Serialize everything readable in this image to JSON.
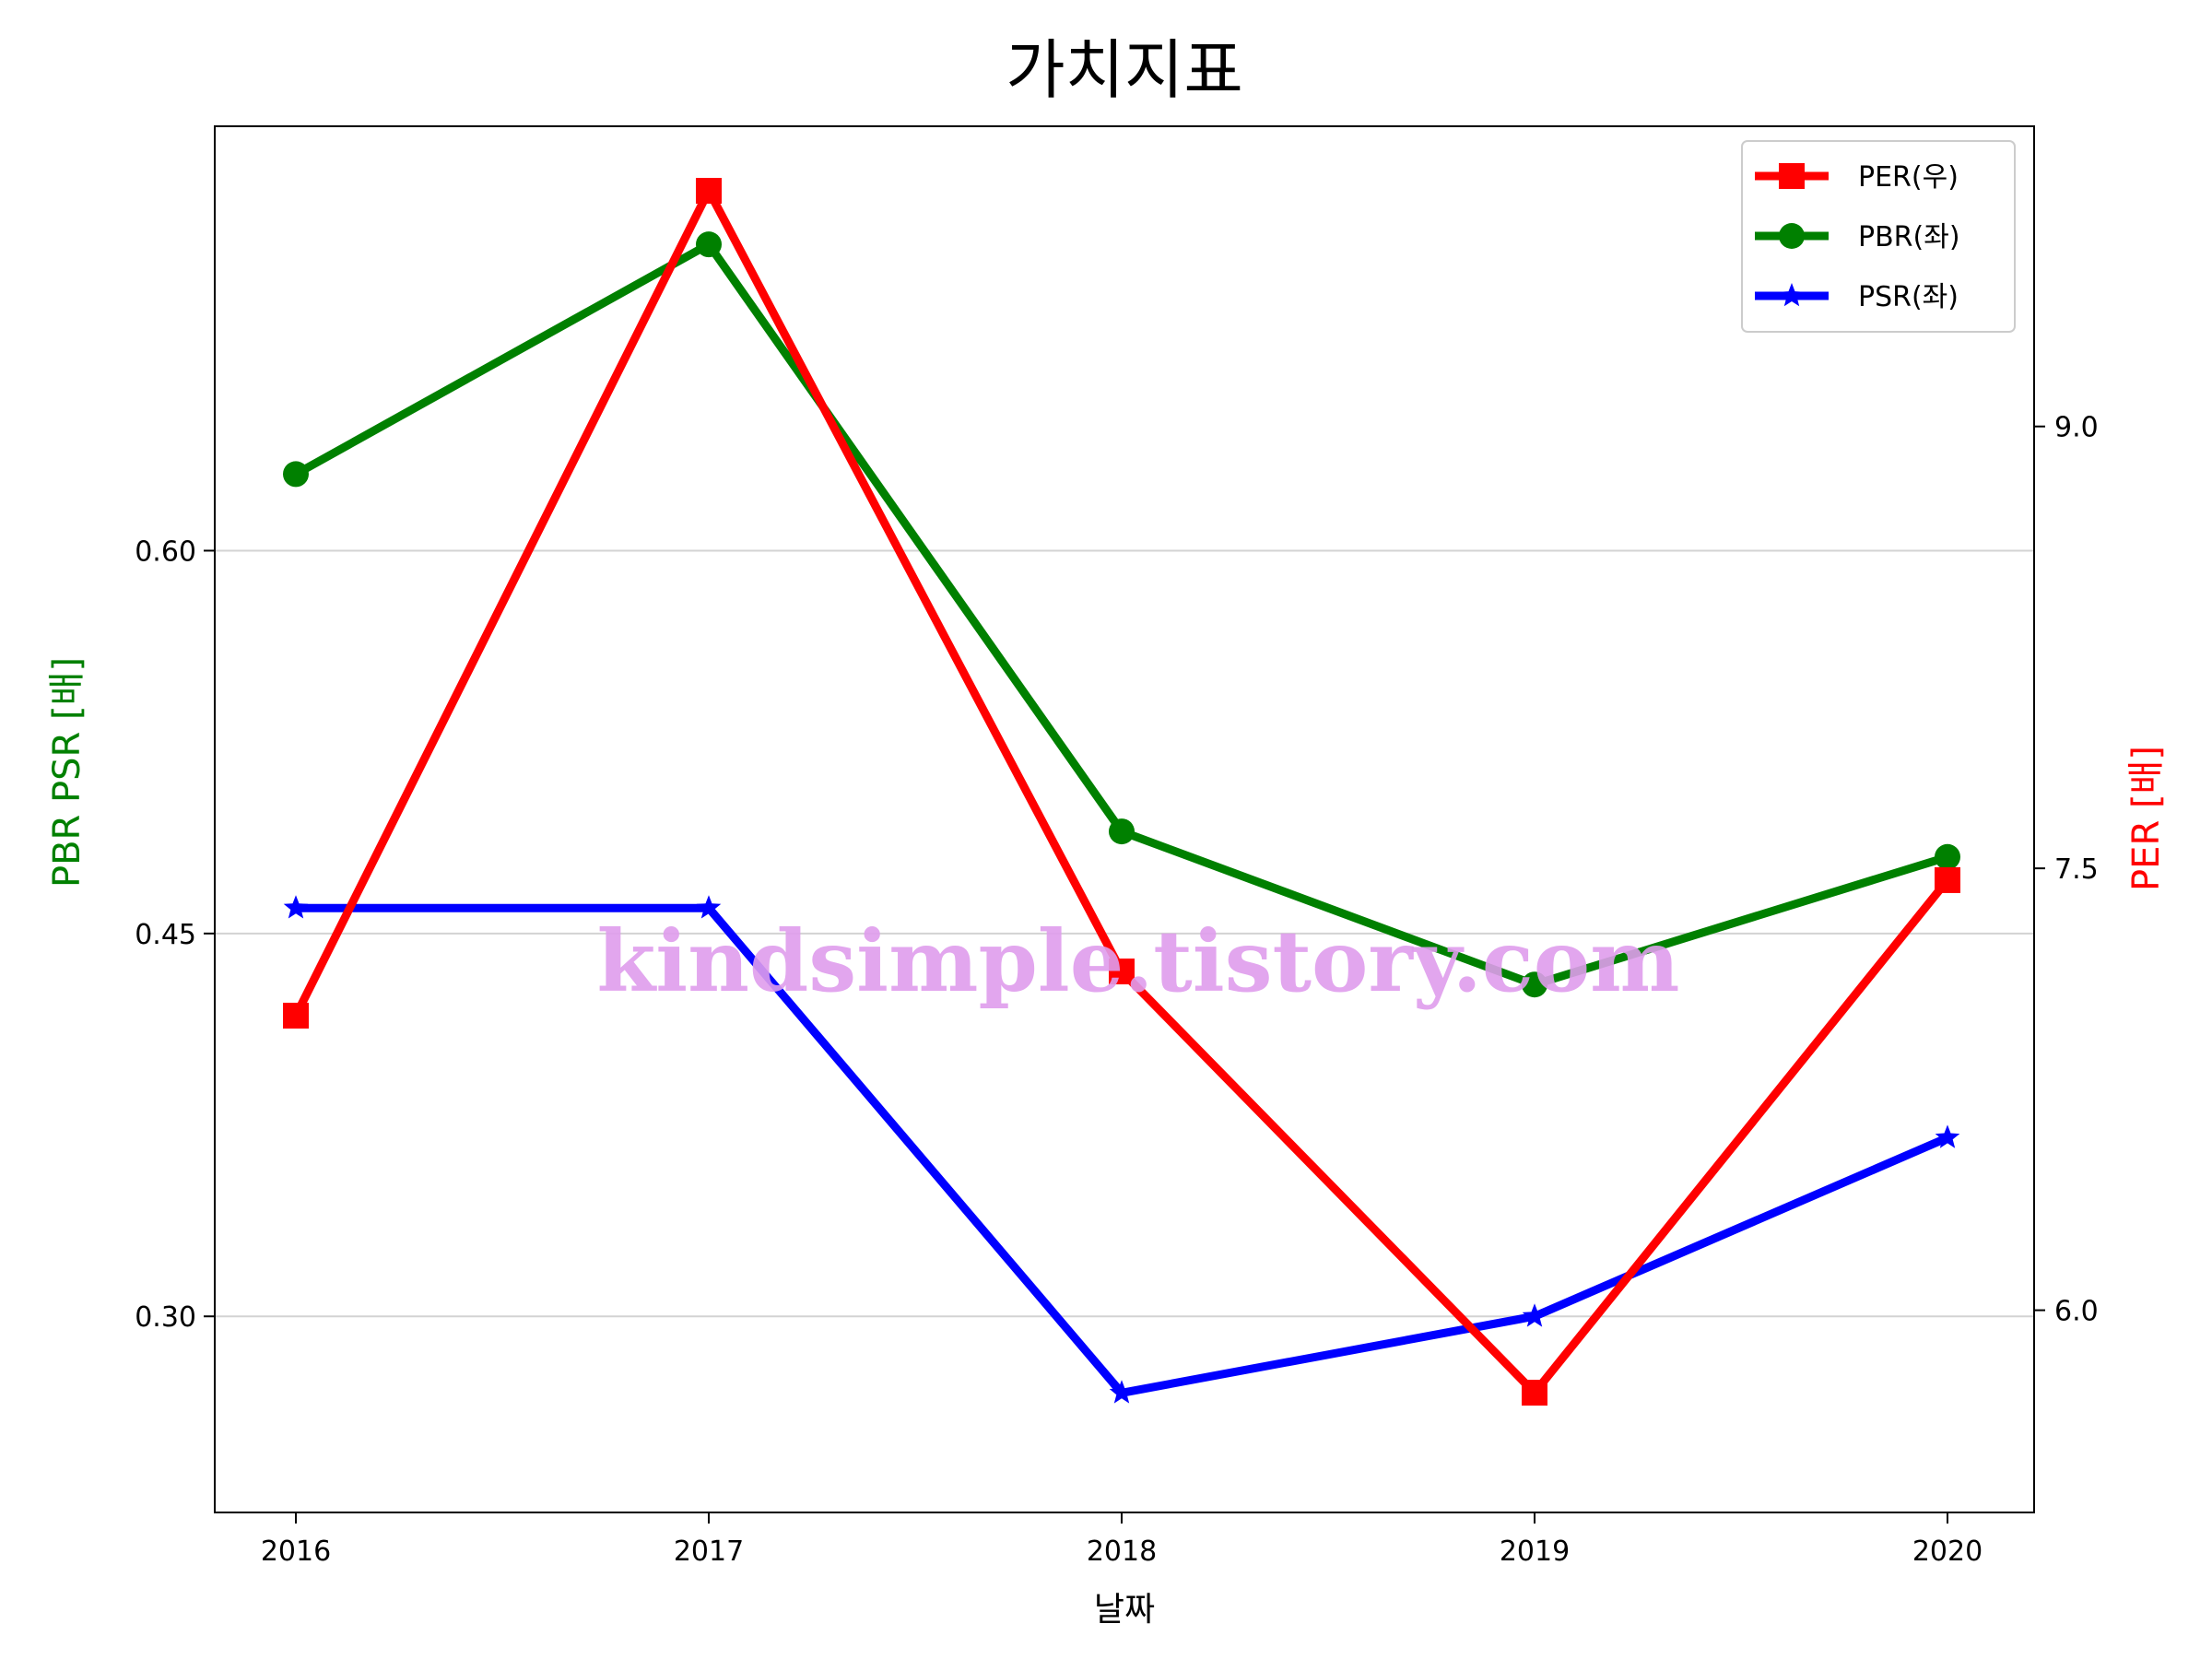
{
  "chart_data": {
    "type": "line",
    "title": "가치지표",
    "xlabel": "날짜",
    "ylabel_left": "PBR PSR [배]",
    "ylabel_right": "PER [배]",
    "categories": [
      "2016",
      "2017",
      "2018",
      "2019",
      "2020"
    ],
    "y_left": {
      "ticks": [
        "0.30",
        "0.45",
        "0.60"
      ],
      "range": [
        0.247,
        0.741
      ]
    },
    "y_right": {
      "ticks": [
        "6.0",
        "7.5",
        "9.0"
      ],
      "range": [
        5.52,
        9.8
      ]
    },
    "series": [
      {
        "name": "PER(우)",
        "axis": "right",
        "marker": "square",
        "color": "#ff0000",
        "values": [
          7.0,
          9.8,
          7.15,
          5.72,
          7.46
        ]
      },
      {
        "name": "PBR(좌)",
        "axis": "left",
        "marker": "circle",
        "color": "#008000",
        "values": [
          0.63,
          0.72,
          0.49,
          0.43,
          0.48
        ]
      },
      {
        "name": "PSR(좌)",
        "axis": "left",
        "marker": "star",
        "color": "#0000ff",
        "values": [
          0.46,
          0.46,
          0.27,
          0.3,
          0.37
        ]
      }
    ],
    "grid": "horizontal (left axis)",
    "legend_position": "top-right",
    "watermark": "kindsimple.tistory.com"
  }
}
